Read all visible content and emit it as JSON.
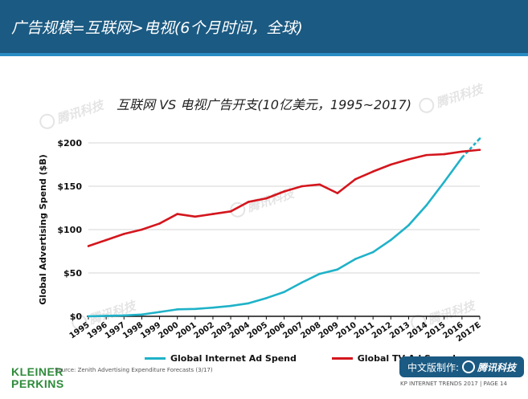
{
  "header": {
    "title": "广告规模=互联网>电视(6个月时间，全球)"
  },
  "watermark": {
    "text": "腾讯科技"
  },
  "chart_data": {
    "type": "line",
    "title": "互联网 VS 电视广告开支(10亿美元，1995~2017)",
    "xlabel": "",
    "ylabel": "Global Advertising Spend ($B)",
    "ylim": [
      0,
      200
    ],
    "yticks": [
      0,
      50,
      100,
      150,
      200
    ],
    "ytick_labels": [
      "$0",
      "$50",
      "$100",
      "$150",
      "$200"
    ],
    "categories": [
      "1995",
      "1996",
      "1997",
      "1998",
      "1999",
      "2000",
      "2001",
      "2002",
      "2003",
      "2004",
      "2005",
      "2006",
      "2007",
      "2008",
      "2009",
      "2010",
      "2011",
      "2012",
      "2013",
      "2014",
      "2015",
      "2016",
      "2017E"
    ],
    "grid": true,
    "legend_position": "bottom",
    "series": [
      {
        "name": "Global Internet Ad Spend",
        "color": "#1fb2c8",
        "values": [
          0.1,
          0.5,
          1,
          2,
          5,
          8,
          8.5,
          10,
          12,
          15,
          21,
          28,
          39,
          49,
          54,
          66,
          74,
          88,
          105,
          128,
          155,
          183,
          205
        ],
        "projected_from_index": 21
      },
      {
        "name": "Global TV Ad Spend",
        "color": "#d4161d",
        "values": [
          81,
          88,
          95,
          100,
          107,
          118,
          115,
          118,
          121,
          132,
          136,
          144,
          150,
          152,
          142,
          158,
          167,
          175,
          181,
          186,
          187,
          190,
          192
        ]
      }
    ]
  },
  "footer": {
    "brand_line1": "KLEINER",
    "brand_line2": "PERKINS",
    "source": "Source: Zenith Advertising Expenditure Forecasts (3/17)",
    "badge_label": "中文版制作:",
    "badge_brand": "腾讯科技",
    "report": "KP INTERNET TRENDS 2017  |  PAGE 14"
  }
}
